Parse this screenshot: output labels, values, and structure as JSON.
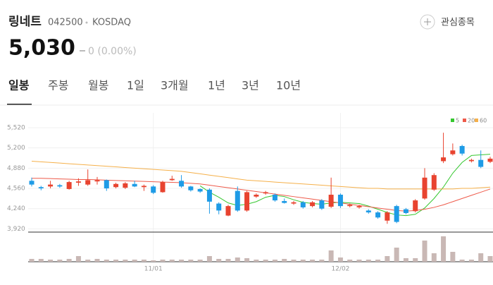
{
  "header": {
    "name": "링네트",
    "code": "042500",
    "market": "KOSDAQ",
    "price": "5,030",
    "change": "0 (0.00%)",
    "watch_button": "관심종목"
  },
  "tabs": [
    "일봉",
    "주봉",
    "월봉",
    "1일",
    "3개월",
    "1년",
    "3년",
    "10년"
  ],
  "chart_data": {
    "type": "candlestick",
    "categories": [
      null,
      null,
      null,
      null,
      null,
      null,
      null,
      null,
      null,
      null,
      null,
      null,
      null,
      "11/01",
      null,
      null,
      null,
      null,
      null,
      null,
      null,
      null,
      null,
      null,
      null,
      null,
      null,
      null,
      null,
      null,
      null,
      null,
      null,
      "12/02",
      null,
      null,
      null,
      null,
      null,
      null,
      null,
      null,
      null,
      null,
      null,
      null,
      null,
      null,
      null,
      null
    ],
    "open": [
      4680,
      4580,
      4590,
      4610,
      4550,
      4650,
      4620,
      4670,
      4690,
      4580,
      4570,
      4630,
      4580,
      4590,
      4500,
      4690,
      4680,
      4590,
      4550,
      4540,
      4320,
      4130,
      4520,
      4210,
      4430,
      4480,
      4460,
      4360,
      4320,
      4340,
      4280,
      4370,
      4270,
      4460,
      4280,
      4260,
      4210,
      4180,
      4050,
      4280,
      4230,
      4200,
      4400,
      4540,
      4990,
      5100,
      5230,
      4990,
      5010,
      4980
    ],
    "high": [
      4730,
      4600,
      4680,
      4630,
      4680,
      4720,
      4860,
      4740,
      4700,
      4650,
      4660,
      4680,
      4620,
      4610,
      4680,
      4760,
      4770,
      4600,
      4560,
      4560,
      4340,
      4300,
      4590,
      4520,
      4480,
      4520,
      4480,
      4400,
      4360,
      4360,
      4360,
      4390,
      4730,
      4480,
      4320,
      4300,
      4230,
      4200,
      4200,
      4300,
      4250,
      4390,
      4880,
      4800,
      5440,
      5270,
      5250,
      5030,
      5160,
      5060
    ],
    "low": [
      4590,
      4530,
      4560,
      4570,
      4540,
      4600,
      4600,
      4620,
      4520,
      4560,
      4550,
      4580,
      4520,
      4470,
      4490,
      4680,
      4570,
      4510,
      4490,
      4160,
      4150,
      4120,
      4190,
      4190,
      4410,
      4460,
      4350,
      4320,
      4300,
      4240,
      4260,
      4220,
      4250,
      4250,
      4260,
      4240,
      4160,
      4080,
      4000,
      4010,
      4150,
      4180,
      4380,
      4520,
      4960,
      5080,
      5080,
      4970,
      4880,
      4960
    ],
    "close": [
      4620,
      4560,
      4620,
      4590,
      4660,
      4670,
      4690,
      4690,
      4560,
      4630,
      4640,
      4590,
      4600,
      4490,
      4660,
      4710,
      4590,
      4530,
      4510,
      4350,
      4210,
      4280,
      4210,
      4500,
      4460,
      4500,
      4370,
      4330,
      4340,
      4260,
      4340,
      4240,
      4460,
      4280,
      4300,
      4280,
      4180,
      4100,
      4180,
      4030,
      4170,
      4370,
      4730,
      4770,
      5050,
      5160,
      5110,
      5010,
      4900,
      5030
    ],
    "up_color": "#e8432f",
    "down_color": "#1e9be6",
    "ma": [
      {
        "name": "5",
        "color": "#35c72f",
        "values": [
          null,
          null,
          null,
          null,
          null,
          null,
          null,
          null,
          null,
          null,
          null,
          null,
          null,
          null,
          null,
          null,
          null,
          null,
          4600,
          4500,
          4420,
          4330,
          4290,
          4310,
          4350,
          4420,
          4450,
          4430,
          4380,
          4340,
          4320,
          4310,
          4330,
          4340,
          4330,
          4320,
          4280,
          4230,
          4180,
          4140,
          4130,
          4150,
          4250,
          4400,
          4580,
          4800,
          4970,
          5080,
          5090,
          5100
        ]
      },
      {
        "name": "20",
        "color": "#ee5a4a",
        "values": [
          4720,
          4720,
          4715,
          4710,
          4705,
          4700,
          4700,
          4695,
          4690,
          4685,
          4680,
          4675,
          4670,
          4665,
          4660,
          4655,
          4650,
          4640,
          4630,
          4610,
          4590,
          4570,
          4550,
          4530,
          4510,
          4490,
          4470,
          4450,
          4430,
          4410,
          4390,
          4370,
          4350,
          4330,
          4310,
          4290,
          4270,
          4250,
          4230,
          4210,
          4200,
          4210,
          4230,
          4260,
          4300,
          4350,
          4400,
          4450,
          4500,
          4550
        ]
      },
      {
        "name": "60",
        "color": "#f5b04a",
        "values": [
          4990,
          4980,
          4970,
          4960,
          4950,
          4940,
          4930,
          4920,
          4910,
          4900,
          4890,
          4880,
          4870,
          4860,
          4850,
          4840,
          4830,
          4810,
          4790,
          4770,
          4750,
          4730,
          4710,
          4690,
          4680,
          4670,
          4660,
          4650,
          4640,
          4630,
          4620,
          4610,
          4600,
          4590,
          4580,
          4570,
          4560,
          4560,
          4550,
          4550,
          4550,
          4550,
          4550,
          4550,
          4550,
          4550,
          4560,
          4560,
          4570,
          4580
        ]
      }
    ],
    "volume": [
      40000,
      40000,
      30000,
      30000,
      40000,
      80000,
      30000,
      40000,
      30000,
      30000,
      30000,
      30000,
      30000,
      20000,
      30000,
      30000,
      30000,
      30000,
      30000,
      80000,
      40000,
      40000,
      60000,
      50000,
      30000,
      30000,
      30000,
      40000,
      30000,
      30000,
      30000,
      30000,
      160000,
      60000,
      30000,
      30000,
      30000,
      30000,
      80000,
      200000,
      50000,
      50000,
      300000,
      120000,
      360000,
      140000,
      30000,
      30000,
      120000,
      80000
    ],
    "volume_color": "#c9b8b5",
    "volume_lim": [
      0,
      400000
    ],
    "ylim": [
      3880,
      5620
    ],
    "yticks": [
      {
        "value": 5520,
        "label": "5,520"
      },
      {
        "value": 5200,
        "label": "5,200"
      },
      {
        "value": 4880,
        "label": "4,880"
      },
      {
        "value": 4560,
        "label": "4,560"
      },
      {
        "value": 4240,
        "label": "4,240"
      },
      {
        "value": 3920,
        "label": "3,920"
      }
    ],
    "grid": true
  }
}
